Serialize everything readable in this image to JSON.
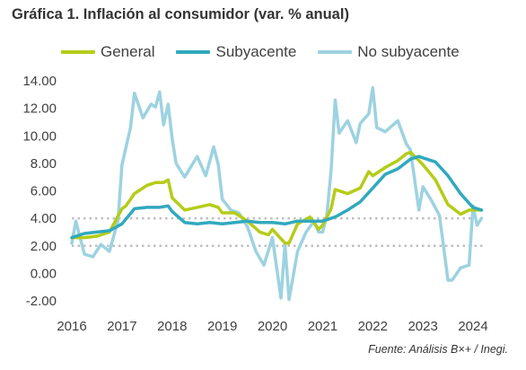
{
  "title": "Gráfica 1. Inflación al consumidor (var. % anual)",
  "source": "Fuente: Análisis B×+ /  Inegi.",
  "chart_data": {
    "type": "line",
    "title": "Gráfica 1. Inflación al consumidor (var. % anual)",
    "xlabel": "",
    "ylabel": "",
    "xlim": [
      2016.0,
      2024.25
    ],
    "ylim": [
      -2.0,
      14.0
    ],
    "y_ticks": [
      "14.00",
      "12.00",
      "10.00",
      "8.00",
      "6.00",
      "4.00",
      "2.00",
      "0.00",
      "-2.00"
    ],
    "x_ticks": [
      "2016",
      "2017",
      "2018",
      "2019",
      "2020",
      "2021",
      "2022",
      "2023",
      "2024"
    ],
    "reference_lines": [
      2.0,
      4.0
    ],
    "grid": false,
    "legend": "top",
    "series": [
      {
        "name": "General",
        "color": "#b5cc18",
        "x": [
          2016.0,
          2016.25,
          2016.5,
          2016.75,
          2017.0,
          2017.08,
          2017.25,
          2017.5,
          2017.67,
          2017.83,
          2017.92,
          2018.0,
          2018.25,
          2018.5,
          2018.75,
          2018.92,
          2019.0,
          2019.25,
          2019.5,
          2019.75,
          2019.92,
          2020.0,
          2020.25,
          2020.33,
          2020.5,
          2020.75,
          2020.92,
          2021.0,
          2021.17,
          2021.25,
          2021.5,
          2021.75,
          2021.92,
          2022.0,
          2022.25,
          2022.5,
          2022.67,
          2022.75,
          2022.92,
          2023.0,
          2023.25,
          2023.5,
          2023.75,
          2023.92,
          2024.0,
          2024.17
        ],
        "values": [
          2.6,
          2.6,
          2.7,
          3.0,
          4.7,
          4.9,
          5.8,
          6.4,
          6.6,
          6.6,
          6.8,
          5.5,
          4.6,
          4.8,
          5.0,
          4.8,
          4.4,
          4.4,
          3.8,
          3.0,
          2.8,
          3.2,
          2.2,
          2.2,
          3.6,
          4.1,
          3.2,
          3.5,
          4.7,
          6.1,
          5.8,
          6.2,
          7.4,
          7.1,
          7.7,
          8.2,
          8.7,
          8.8,
          8.2,
          7.9,
          6.8,
          5.0,
          4.3,
          4.6,
          4.6,
          4.6
        ]
      },
      {
        "name": "Subyacente",
        "color": "#31a9be",
        "x": [
          2016.0,
          2016.25,
          2016.5,
          2016.75,
          2017.0,
          2017.25,
          2017.5,
          2017.75,
          2017.92,
          2018.0,
          2018.25,
          2018.5,
          2018.75,
          2019.0,
          2019.25,
          2019.5,
          2019.75,
          2020.0,
          2020.25,
          2020.5,
          2020.75,
          2021.0,
          2021.25,
          2021.5,
          2021.75,
          2022.0,
          2022.25,
          2022.5,
          2022.75,
          2022.92,
          2023.0,
          2023.25,
          2023.5,
          2023.75,
          2023.92,
          2024.0,
          2024.17
        ],
        "values": [
          2.6,
          2.9,
          3.0,
          3.1,
          3.6,
          4.7,
          4.8,
          4.8,
          4.9,
          4.5,
          3.7,
          3.6,
          3.7,
          3.6,
          3.7,
          3.8,
          3.7,
          3.7,
          3.6,
          3.8,
          3.8,
          3.8,
          4.1,
          4.6,
          5.2,
          6.2,
          7.2,
          7.6,
          8.3,
          8.5,
          8.4,
          8.1,
          7.1,
          5.8,
          5.1,
          4.8,
          4.6
        ]
      },
      {
        "name": "No subyacente",
        "color": "#9dd2e1",
        "x": [
          2016.0,
          2016.08,
          2016.25,
          2016.42,
          2016.58,
          2016.75,
          2016.92,
          2017.0,
          2017.17,
          2017.25,
          2017.42,
          2017.58,
          2017.67,
          2017.75,
          2017.83,
          2017.92,
          2018.0,
          2018.08,
          2018.25,
          2018.5,
          2018.67,
          2018.83,
          2018.92,
          2019.0,
          2019.17,
          2019.33,
          2019.5,
          2019.67,
          2019.83,
          2020.0,
          2020.17,
          2020.25,
          2020.33,
          2020.5,
          2020.67,
          2020.83,
          2020.92,
          2021.0,
          2021.08,
          2021.17,
          2021.25,
          2021.33,
          2021.5,
          2021.67,
          2021.75,
          2021.92,
          2022.0,
          2022.08,
          2022.25,
          2022.5,
          2022.67,
          2022.75,
          2022.92,
          2023.0,
          2023.17,
          2023.33,
          2023.5,
          2023.58,
          2023.75,
          2023.92,
          2024.0,
          2024.08,
          2024.17
        ],
        "values": [
          2.2,
          3.8,
          1.4,
          1.2,
          2.1,
          1.6,
          3.8,
          7.9,
          10.6,
          13.1,
          11.3,
          12.3,
          12.1,
          13.2,
          10.8,
          12.3,
          9.8,
          8.0,
          7.0,
          8.5,
          7.1,
          9.2,
          7.9,
          5.4,
          4.6,
          4.4,
          3.4,
          1.6,
          0.6,
          2.6,
          -1.8,
          2.1,
          -1.9,
          1.6,
          3.0,
          3.8,
          3.0,
          3.0,
          4.1,
          7.5,
          12.6,
          10.2,
          11.1,
          9.5,
          10.9,
          11.6,
          13.5,
          10.6,
          10.3,
          11.1,
          9.4,
          9.0,
          4.6,
          6.3,
          5.3,
          4.2,
          -0.5,
          -0.5,
          0.4,
          0.6,
          4.9,
          3.5,
          4.0
        ]
      }
    ]
  }
}
